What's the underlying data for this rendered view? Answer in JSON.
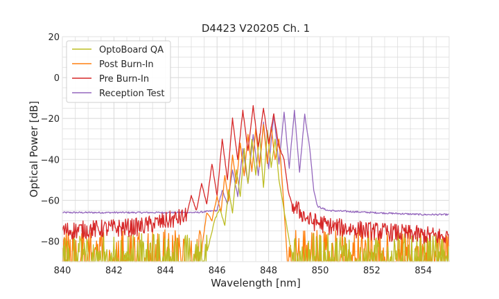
{
  "chart_data": {
    "type": "line",
    "title": "D4423 V20205 Ch. 1",
    "xlabel": "Wavelength [nm]",
    "ylabel": "Optical Power [dB]",
    "xlim": [
      840,
      855
    ],
    "ylim": [
      -90,
      20
    ],
    "xticks": [
      840,
      842,
      844,
      846,
      848,
      850,
      852,
      854
    ],
    "yticks": [
      20,
      0,
      -20,
      -40,
      -60,
      -80
    ],
    "xtick_labels": [
      "840",
      "842",
      "844",
      "846",
      "848",
      "850",
      "852",
      "854"
    ],
    "ytick_labels": [
      "20",
      "0",
      "−20",
      "−40",
      "−60",
      "−80"
    ],
    "grid": true,
    "legend_position": "top-left",
    "series": [
      {
        "name": "OptoBoard QA",
        "color": "#bcbd22",
        "noise_floor": -86,
        "noise_range": [
          840,
          855
        ],
        "noise_x": [
          840,
          845.6,
          848.9,
          855
        ],
        "noise_y": [
          -86,
          -86,
          -86,
          -86
        ],
        "x": [
          845.6,
          845.9,
          846.1,
          846.3,
          846.45,
          846.6,
          846.75,
          846.9,
          847.05,
          847.2,
          847.35,
          847.5,
          847.65,
          847.8,
          847.95,
          848.1,
          848.25,
          848.4,
          848.6,
          848.8,
          848.9
        ],
        "y": [
          -86,
          -70,
          -64,
          -72,
          -55,
          -66,
          -45,
          -58,
          -35,
          -52,
          -30,
          -48,
          -28,
          -54,
          -26,
          -44,
          -30,
          -50,
          -65,
          -80,
          -86
        ]
      },
      {
        "name": "Post Burn-In",
        "color": "#ff7f0e",
        "noise_floor": -84,
        "noise_range": [
          840,
          855
        ],
        "noise_x": [
          840,
          845.4,
          848.7,
          855
        ],
        "noise_y": [
          -84,
          -84,
          -84,
          -84
        ],
        "x": [
          845.4,
          845.6,
          845.8,
          846.0,
          846.15,
          846.3,
          846.45,
          846.6,
          846.75,
          846.9,
          847.05,
          847.2,
          847.35,
          847.5,
          847.65,
          847.8,
          847.95,
          848.1,
          848.25,
          848.4,
          848.55,
          848.7
        ],
        "y": [
          -84,
          -66,
          -70,
          -58,
          -66,
          -48,
          -60,
          -38,
          -52,
          -32,
          -48,
          -28,
          -46,
          -25,
          -44,
          -23,
          -42,
          -24,
          -40,
          -30,
          -55,
          -84
        ]
      },
      {
        "name": "Pre Burn-In",
        "color": "#d62728",
        "noise_floor": -74,
        "noise_range": [
          840,
          855
        ],
        "noise_x": [
          840,
          843.0,
          844.8,
          848.9,
          849.6,
          850.5,
          852.0,
          855
        ],
        "noise_y": [
          -75,
          -73,
          -68,
          -62,
          -70,
          -73,
          -75,
          -78
        ],
        "x": [
          844.8,
          845.0,
          845.2,
          845.4,
          845.6,
          845.8,
          846.0,
          846.2,
          846.4,
          846.6,
          846.8,
          847.0,
          847.2,
          847.4,
          847.6,
          847.8,
          848.0,
          848.2,
          848.4,
          848.6,
          848.75,
          848.9
        ],
        "y": [
          -68,
          -58,
          -65,
          -52,
          -62,
          -42,
          -58,
          -30,
          -50,
          -20,
          -40,
          -16,
          -36,
          -14,
          -34,
          -15,
          -32,
          -18,
          -34,
          -40,
          -55,
          -62
        ]
      },
      {
        "name": "Reception Test",
        "color": "#9467bd",
        "noise_floor": -66,
        "noise_range": [
          840,
          855
        ],
        "noise_x": [
          840,
          842,
          844,
          845.2,
          846
        ],
        "noise_y": [
          -66,
          -66,
          -66,
          -66,
          -65
        ],
        "x": [
          846,
          846.2,
          846.4,
          846.6,
          846.8,
          847.0,
          847.2,
          847.4,
          847.6,
          847.8,
          848.0,
          848.2,
          848.4,
          848.6,
          848.8,
          849.0,
          849.2,
          849.4,
          849.6,
          849.75,
          849.9,
          850.3,
          852,
          854,
          855
        ],
        "y": [
          -65,
          -55,
          -62,
          -45,
          -58,
          -35,
          -52,
          -28,
          -48,
          -22,
          -45,
          -18,
          -42,
          -17,
          -44,
          -16,
          -46,
          -18,
          -35,
          -55,
          -63,
          -65,
          -66,
          -67,
          -67
        ]
      }
    ]
  }
}
